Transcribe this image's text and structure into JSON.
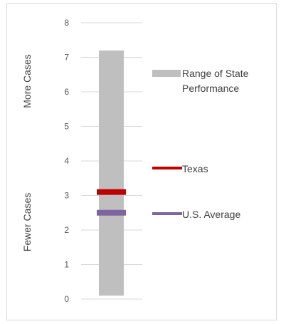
{
  "chart_data": {
    "type": "bar",
    "y_axis": {
      "min": 0,
      "max": 8,
      "step": 1,
      "ticks": [
        "0",
        "1",
        "2",
        "3",
        "4",
        "5",
        "6",
        "7",
        "8"
      ],
      "grid": true
    },
    "side_labels": {
      "top": "More Cases",
      "bottom": "Fewer Cases"
    },
    "range": {
      "name": "Range of State Performance",
      "name_lines": [
        "Range of State",
        "Performance"
      ],
      "low": 0.1,
      "high": 7.2,
      "color": "#bfbfbf"
    },
    "markers": [
      {
        "name": "Texas",
        "value": 3.1,
        "color": "#c00000"
      },
      {
        "name": "U.S. Average",
        "value": 2.5,
        "color": "#8064a2"
      }
    ]
  }
}
